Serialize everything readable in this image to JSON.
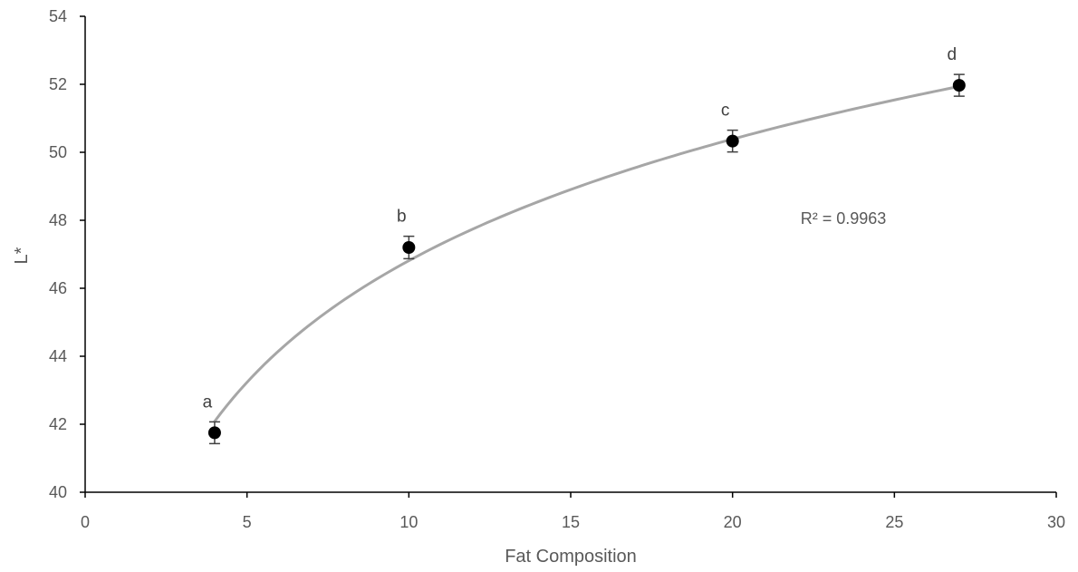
{
  "chart_data": {
    "type": "scatter",
    "title": "",
    "xlabel": "Fat Composition",
    "ylabel": "L*",
    "xlim": [
      0,
      30
    ],
    "ylim": [
      40,
      54
    ],
    "x_ticks": [
      0,
      5,
      10,
      15,
      20,
      25,
      30
    ],
    "y_ticks": [
      40,
      42,
      44,
      46,
      48,
      50,
      52,
      54
    ],
    "grid": false,
    "legend": "none",
    "series": [
      {
        "x": [
          4,
          10,
          20,
          27
        ],
        "y": [
          41.75,
          47.2,
          50.33,
          51.97
        ],
        "error": [
          0.32,
          0.33,
          0.32,
          0.32
        ],
        "labels": [
          "a",
          "b",
          "c",
          "d"
        ],
        "marker_color": "#000000"
      }
    ],
    "trendline": {
      "type": "logarithmic",
      "a": 5.16,
      "b": 34.93,
      "x_range": [
        4,
        27
      ],
      "color": "#a6a6a6"
    },
    "annotations": [
      {
        "text": "R² = 0.9963",
        "x": 22.1,
        "y": 47.9
      }
    ],
    "colors": {
      "axis": "#000000",
      "error_bar": "#404040",
      "text": "#595959"
    }
  }
}
